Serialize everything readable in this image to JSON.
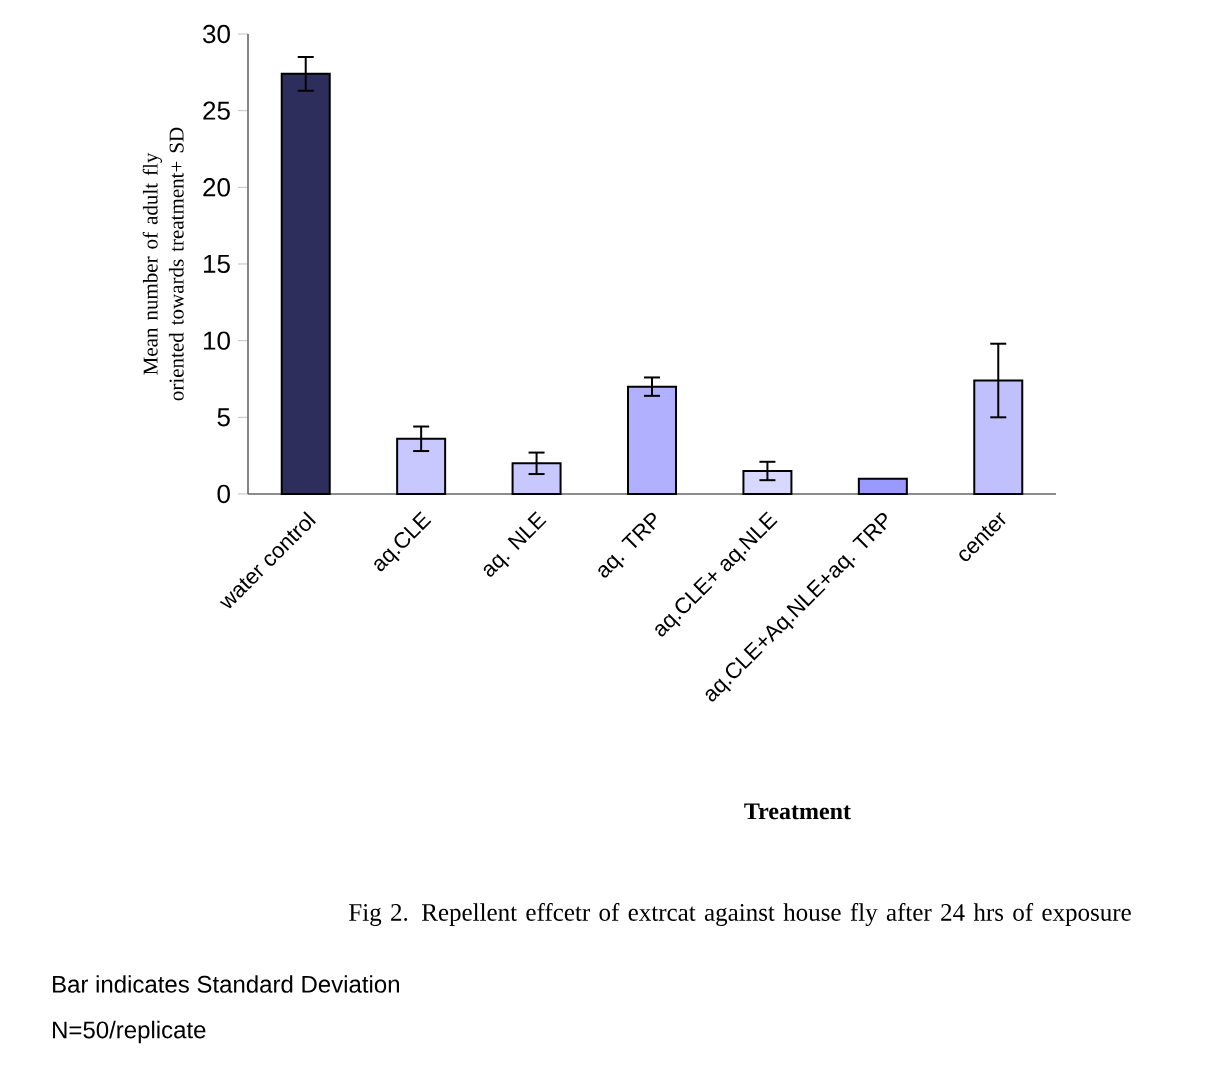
{
  "chart_data": {
    "type": "bar",
    "title": "Fig 2. Repellent effcetr of extrcat against house fly after 24 hrs of exposure",
    "xlabel": "Treatment",
    "ylabel": "Mean number of adult fly oriented towards treatment+ SD",
    "categories": [
      "water control",
      "aq.CLE",
      "aq. NLE",
      "aq. TRP",
      "aq.CLE+ aq.NLE",
      "aq.CLE+Aq.NLE+aq. TRP",
      "center"
    ],
    "values": [
      27.4,
      3.6,
      2.0,
      7.0,
      1.5,
      1.0,
      7.4
    ],
    "errors": [
      1.1,
      0.8,
      0.7,
      0.6,
      0.6,
      null,
      2.4
    ],
    "colors": [
      "#2e2e5c",
      "#c8c8ff",
      "#c8c8ff",
      "#b0b0ff",
      "#d8d8ff",
      "#9999ff",
      "#c0c0ff"
    ],
    "ylim": [
      0,
      30
    ],
    "yticks": [
      0,
      5,
      10,
      15,
      20,
      25,
      30
    ],
    "annotations": [
      "Bar indicates Standard Deviation",
      "N=50/replicate"
    ]
  }
}
